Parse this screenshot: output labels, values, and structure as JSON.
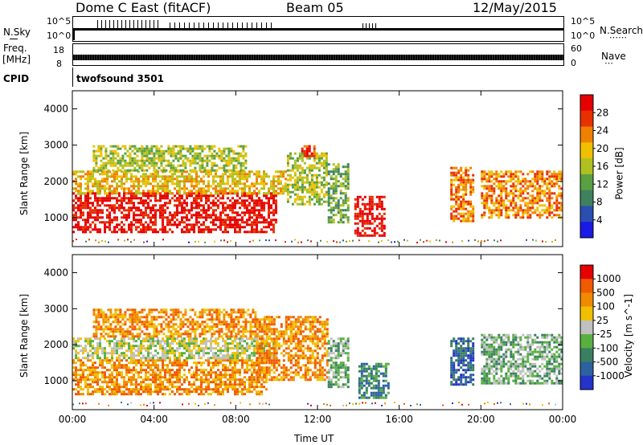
{
  "header": {
    "station": "Dome C East (fitACF)",
    "beam": "Beam 05",
    "date": "12/May/2015"
  },
  "info_panels": {
    "nsky_label": "N.Sky",
    "nsky_ticks": [
      "10^5",
      "10^0"
    ],
    "nsearch_label": "N.Search",
    "nsearch_ticks": [
      "10^5",
      "10^0"
    ],
    "freq_label_1": "Freq.",
    "freq_label_2": "[MHz]",
    "freq_ticks": [
      "18",
      "8"
    ],
    "nave_label": "Nave",
    "nave_ticks": [
      "60",
      "0"
    ],
    "cpid_label": "CPID",
    "cpid_value": "twofsound 3501"
  },
  "colors": {
    "power_scale": [
      "#1a1ae6",
      "#2a4fb0",
      "#3f8060",
      "#5aa040",
      "#b0c020",
      "#f0c000",
      "#f08000",
      "#e83000",
      "#e60000"
    ],
    "velocity_scale": [
      "#2433c8",
      "#2c62a0",
      "#3a8060",
      "#58b040",
      "#c0c0c0",
      "#f0c000",
      "#f08a00",
      "#f05a00",
      "#e60000"
    ]
  },
  "chart_data": [
    {
      "type": "heatmap",
      "name": "Power panel",
      "xlabel": "",
      "ylabel": "Slant Range [km]",
      "x_ticks": [
        "00:00",
        "04:00",
        "08:00",
        "12:00",
        "16:00",
        "20:00",
        "00:00"
      ],
      "y_ticks": [
        1000,
        2000,
        3000,
        4000
      ],
      "ylim": [
        200,
        4500
      ],
      "colorbar_label": "Power [dB]",
      "colorbar_ticks": [
        4,
        8,
        12,
        16,
        20,
        24,
        28
      ],
      "regions": [
        {
          "t0": 0.0,
          "t1": 10.0,
          "r0": 600,
          "r1": 1700,
          "level": 8
        },
        {
          "t0": 0.0,
          "t1": 10.5,
          "r0": 1700,
          "r1": 2300,
          "level": 5
        },
        {
          "t0": 1.0,
          "t1": 8.5,
          "r0": 2300,
          "r1": 3000,
          "level": 4
        },
        {
          "t0": 10.5,
          "t1": 12.5,
          "r0": 1400,
          "r1": 2800,
          "level": 4
        },
        {
          "t0": 11.2,
          "t1": 11.8,
          "r0": 2700,
          "r1": 3000,
          "level": 7
        },
        {
          "t0": 12.5,
          "t1": 13.5,
          "r0": 900,
          "r1": 2500,
          "level": 3
        },
        {
          "t0": 13.8,
          "t1": 15.3,
          "r0": 500,
          "r1": 1600,
          "level": 8
        },
        {
          "t0": 18.5,
          "t1": 19.6,
          "r0": 900,
          "r1": 2400,
          "level": 6
        },
        {
          "t0": 20.0,
          "t1": 24.0,
          "r0": 1000,
          "r1": 2300,
          "level": 6
        }
      ]
    },
    {
      "type": "heatmap",
      "name": "Velocity panel",
      "xlabel": "Time UT",
      "ylabel": "Slant Range [km]",
      "x_ticks": [
        "00:00",
        "04:00",
        "08:00",
        "12:00",
        "16:00",
        "20:00",
        "00:00"
      ],
      "y_ticks": [
        1000,
        2000,
        3000,
        4000
      ],
      "ylim": [
        200,
        4500
      ],
      "colorbar_label": "Velocity [m s^-1]",
      "colorbar_ticks": [
        "1000",
        "500",
        "100",
        "25",
        "-25",
        "-100",
        "-500",
        "-1000"
      ],
      "regions": [
        {
          "t0": 0.0,
          "t1": 9.5,
          "r0": 600,
          "r1": 1600,
          "level": 6
        },
        {
          "t0": 0.0,
          "t1": 10.0,
          "r0": 1600,
          "r1": 2200,
          "level": 4
        },
        {
          "t0": 1.0,
          "t1": 9.0,
          "r0": 2200,
          "r1": 3000,
          "level": 6
        },
        {
          "t0": 9.0,
          "t1": 12.5,
          "r0": 1000,
          "r1": 2800,
          "level": 6
        },
        {
          "t0": 12.5,
          "t1": 13.5,
          "r0": 800,
          "r1": 2200,
          "level": 3
        },
        {
          "t0": 14.0,
          "t1": 15.5,
          "r0": 500,
          "r1": 1500,
          "level": 2
        },
        {
          "t0": 18.5,
          "t1": 19.6,
          "r0": 900,
          "r1": 2200,
          "level": 1
        },
        {
          "t0": 20.0,
          "t1": 24.0,
          "r0": 900,
          "r1": 2300,
          "level": 3
        }
      ]
    }
  ]
}
